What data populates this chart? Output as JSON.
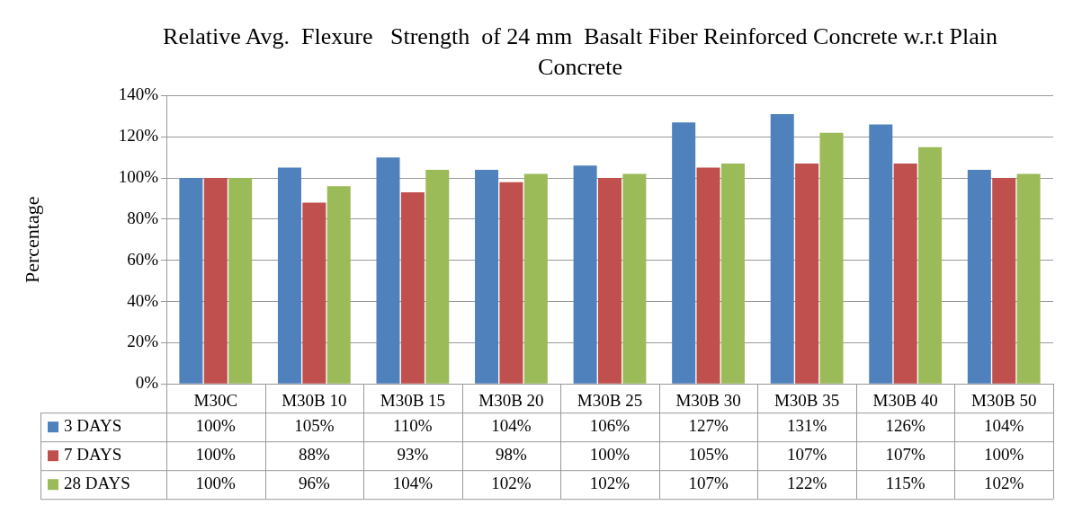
{
  "chart_data": {
    "type": "bar",
    "title": "Relative Avg.  Flexure   Strength  of 24 mm  Basalt Fiber Reinforced Concrete w.r.t Plain      Concrete",
    "ylabel": "Percentage",
    "categories": [
      "M30C",
      "M30B 10",
      "M30B 15",
      "M30B 20",
      "M30B 25",
      "M30B 30",
      "M30B 35",
      "M30B 40",
      "M30B 50"
    ],
    "series": [
      {
        "name": "3 DAYS",
        "color": "#4f81bd",
        "values": [
          100,
          105,
          110,
          104,
          106,
          127,
          131,
          126,
          104
        ],
        "value_labels": [
          "100%",
          "105%",
          "110%",
          "104%",
          "106%",
          "127%",
          "131%",
          "126%",
          "104%"
        ]
      },
      {
        "name": "7 DAYS",
        "color": "#c0504d",
        "values": [
          100,
          88,
          93,
          98,
          100,
          105,
          107,
          107,
          100
        ],
        "value_labels": [
          "100%",
          "88%",
          "93%",
          "98%",
          "100%",
          "105%",
          "107%",
          "107%",
          "100%"
        ]
      },
      {
        "name": "28 DAYS",
        "color": "#9bbb59",
        "values": [
          100,
          96,
          104,
          102,
          102,
          107,
          122,
          115,
          102
        ],
        "value_labels": [
          "100%",
          "96%",
          "104%",
          "102%",
          "102%",
          "107%",
          "122%",
          "115%",
          "102%"
        ]
      }
    ],
    "ylim": [
      0,
      140
    ],
    "yticks": [
      {
        "value": 0,
        "label": "0%"
      },
      {
        "value": 20,
        "label": "20%"
      },
      {
        "value": 40,
        "label": "40%"
      },
      {
        "value": 60,
        "label": "60%"
      },
      {
        "value": 80,
        "label": "80%"
      },
      {
        "value": 100,
        "label": "100%"
      },
      {
        "value": 120,
        "label": "120%"
      },
      {
        "value": 140,
        "label": "140%"
      }
    ],
    "grid": "y",
    "legend": "bottom left"
  }
}
